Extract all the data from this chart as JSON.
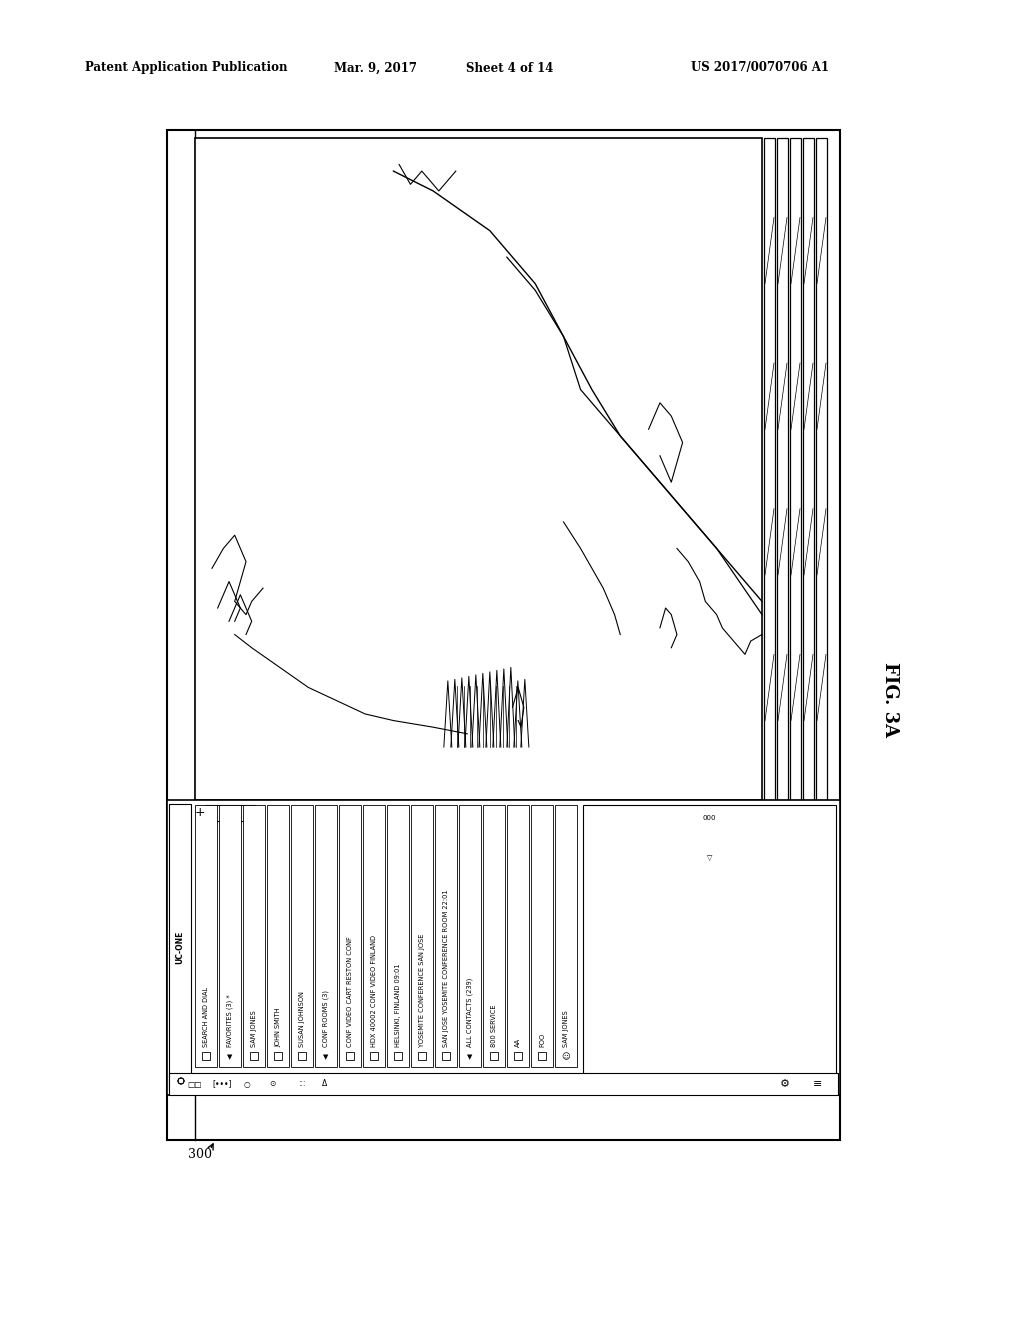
{
  "bg_color": "#ffffff",
  "header_text": "Patent Application Publication",
  "header_date": "Mar. 9, 2017",
  "header_sheet": "Sheet 4 of 14",
  "header_patent": "US 2017/0070706 A1",
  "fig_label": "FIG. 3A",
  "ref_num": "300",
  "sidebar_label": "UC-ONE",
  "menu_items": [
    "SEARCH AND DIAL",
    "FAVORITES (3) *",
    "SAM JONES",
    "JOHN SMITH",
    "SUSAN JOHNSON",
    "CONF ROOMS (3)",
    "CONF VIDEO CART RESTON CONF",
    "HDX 40002 CONF VIDEO FINLAND",
    "HELSINKI, FINLAND 09:01",
    "YOSEMITE CONFERENCE SAN JOSE",
    "SAN JOSE YOSEMITE CONFERENCE ROOM 22:01",
    "ALL CONTACTS (239)",
    "800 SERVICE",
    "AA",
    "FOO",
    "SAM JONES"
  ],
  "menu_triangles": [
    false,
    true,
    false,
    false,
    false,
    true,
    false,
    false,
    false,
    false,
    false,
    true,
    false,
    false,
    false,
    false
  ],
  "menu_squares": [
    false,
    false,
    true,
    true,
    true,
    false,
    true,
    true,
    true,
    true,
    true,
    false,
    true,
    true,
    true,
    true
  ]
}
